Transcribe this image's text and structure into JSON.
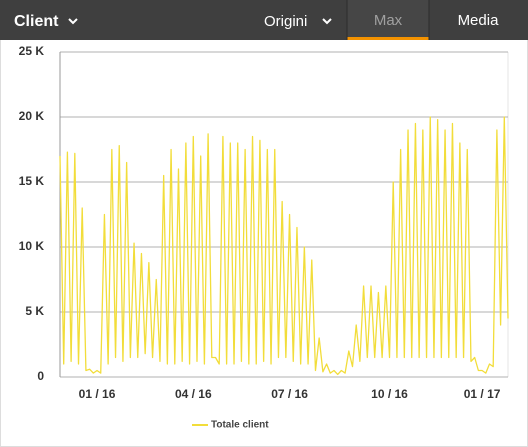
{
  "header": {
    "title": "Client",
    "menu": "Origini",
    "tabs": [
      "Max",
      "Media"
    ]
  },
  "chart_data": {
    "type": "line",
    "categories": [
      null,
      null,
      null,
      null,
      null,
      null,
      null,
      null,
      null,
      null,
      "01 / 16",
      null,
      null,
      null,
      null,
      null,
      null,
      null,
      null,
      null,
      null,
      null,
      null,
      null,
      null,
      null,
      null,
      null,
      null,
      null,
      null,
      null,
      null,
      null,
      null,
      null,
      "04 / 16",
      null,
      null,
      null,
      null,
      null,
      null,
      null,
      null,
      null,
      null,
      null,
      null,
      null,
      null,
      null,
      null,
      null,
      null,
      null,
      null,
      null,
      null,
      null,
      null,
      null,
      "07 / 16",
      null,
      null,
      null,
      null,
      null,
      null,
      null,
      null,
      null,
      null,
      null,
      null,
      null,
      null,
      null,
      null,
      null,
      null,
      null,
      null,
      null,
      null,
      null,
      null,
      null,
      null,
      "10 / 16",
      null,
      null,
      null,
      null,
      null,
      null,
      null,
      null,
      null,
      null,
      null,
      null,
      null,
      null,
      null,
      null,
      null,
      null,
      null,
      null,
      null,
      null,
      null,
      null,
      "01 / 17",
      null,
      null,
      null,
      null,
      null,
      null,
      null
    ],
    "series": [
      {
        "name": "Totale client",
        "color": "#f2dd3a",
        "values": [
          17000,
          1000,
          17300,
          1200,
          17200,
          1000,
          13000,
          500,
          600,
          300,
          500,
          300,
          12500,
          1000,
          17500,
          1500,
          17800,
          1200,
          16500,
          1500,
          10300,
          1500,
          9500,
          1800,
          8800,
          1500,
          7500,
          1200,
          15500,
          1000,
          17500,
          1000,
          16000,
          1200,
          18000,
          1000,
          18500,
          1200,
          17000,
          1000,
          18700,
          1500,
          1500,
          1000,
          18500,
          1000,
          18000,
          1000,
          18000,
          1200,
          17500,
          1000,
          18500,
          1000,
          18200,
          1200,
          17500,
          1000,
          17500,
          1500,
          13500,
          1500,
          12500,
          1200,
          11500,
          1000,
          10000,
          1000,
          9000,
          500,
          3000,
          400,
          1000,
          300,
          500,
          200,
          500,
          300,
          2000,
          800,
          4000,
          1200,
          7000,
          1500,
          7000,
          1500,
          6500,
          1500,
          7000,
          1500,
          15000,
          1500,
          17500,
          1500,
          19000,
          1500,
          19500,
          1500,
          19000,
          1500,
          20000,
          1500,
          19800,
          1500,
          19000,
          1500,
          19500,
          1500,
          18000,
          1500,
          17500,
          1200,
          1500,
          500,
          500,
          300,
          1000,
          800,
          19000,
          4000,
          20000,
          4500
        ]
      }
    ],
    "ylim": [
      0,
      25000
    ],
    "yticks": [
      0,
      {
        "value": 5000,
        "label": "5 K"
      },
      {
        "value": 10000,
        "label": "10 K"
      },
      {
        "value": 15000,
        "label": "15 K"
      },
      {
        "value": 20000,
        "label": "20 K"
      },
      {
        "value": 25000,
        "label": "25 K"
      }
    ],
    "grid": true,
    "legend": "bottom"
  }
}
